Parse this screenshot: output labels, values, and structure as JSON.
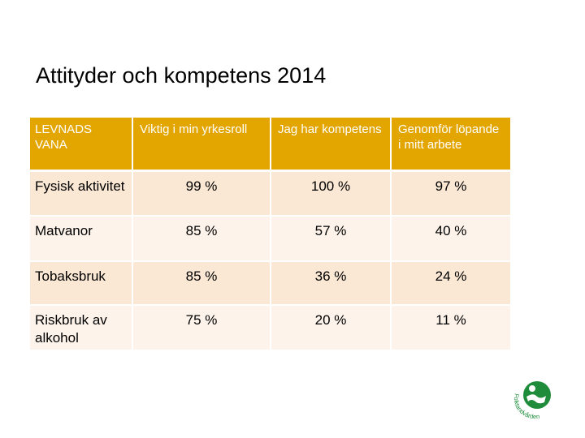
{
  "slide": {
    "title": "Attityder och kompetens 2014"
  },
  "table": {
    "headers": [
      "LEVNADS VANA",
      "Viktig i min yrkesroll",
      "Jag har kompetens",
      "Genomför löpande i mitt arbete"
    ],
    "rows": [
      {
        "label": "Fysisk aktivitet",
        "values": [
          "99 %",
          "100 %",
          "97 %"
        ]
      },
      {
        "label": "Matvanor",
        "values": [
          "85 %",
          "57 %",
          "40 %"
        ]
      },
      {
        "label": "Tobaksbruk",
        "values": [
          "85 %",
          "36 %",
          "24 %"
        ]
      },
      {
        "label": "Riskbruk av alkohol",
        "values": [
          "75 %",
          "20 %",
          "11 %"
        ]
      }
    ]
  },
  "logo": {
    "icon": "folktandvarden-logo-icon",
    "text": "Folktandvården",
    "color": "#1e8c3a"
  },
  "colors": {
    "header_bg": "#e3a500",
    "row_odd": "#fae8d4",
    "row_even": "#fdf3ea"
  }
}
